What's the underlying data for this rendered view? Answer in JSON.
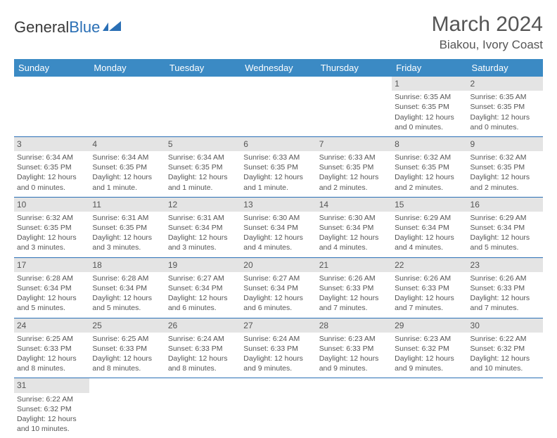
{
  "logo": {
    "text1": "General",
    "text2": "Blue"
  },
  "title": "March 2024",
  "location": "Biakou, Ivory Coast",
  "colors": {
    "header_bg": "#3b8ac4",
    "header_text": "#ffffff",
    "daynum_bg": "#e4e4e4",
    "row_border": "#2a6fb5",
    "body_text": "#555555",
    "logo_blue": "#2a6fb5"
  },
  "day_headers": [
    "Sunday",
    "Monday",
    "Tuesday",
    "Wednesday",
    "Thursday",
    "Friday",
    "Saturday"
  ],
  "weeks": [
    [
      null,
      null,
      null,
      null,
      null,
      {
        "n": "1",
        "sr": "6:35 AM",
        "ss": "6:35 PM",
        "dl": "12 hours and 0 minutes."
      },
      {
        "n": "2",
        "sr": "6:35 AM",
        "ss": "6:35 PM",
        "dl": "12 hours and 0 minutes."
      }
    ],
    [
      {
        "n": "3",
        "sr": "6:34 AM",
        "ss": "6:35 PM",
        "dl": "12 hours and 0 minutes."
      },
      {
        "n": "4",
        "sr": "6:34 AM",
        "ss": "6:35 PM",
        "dl": "12 hours and 1 minute."
      },
      {
        "n": "5",
        "sr": "6:34 AM",
        "ss": "6:35 PM",
        "dl": "12 hours and 1 minute."
      },
      {
        "n": "6",
        "sr": "6:33 AM",
        "ss": "6:35 PM",
        "dl": "12 hours and 1 minute."
      },
      {
        "n": "7",
        "sr": "6:33 AM",
        "ss": "6:35 PM",
        "dl": "12 hours and 2 minutes."
      },
      {
        "n": "8",
        "sr": "6:32 AM",
        "ss": "6:35 PM",
        "dl": "12 hours and 2 minutes."
      },
      {
        "n": "9",
        "sr": "6:32 AM",
        "ss": "6:35 PM",
        "dl": "12 hours and 2 minutes."
      }
    ],
    [
      {
        "n": "10",
        "sr": "6:32 AM",
        "ss": "6:35 PM",
        "dl": "12 hours and 3 minutes."
      },
      {
        "n": "11",
        "sr": "6:31 AM",
        "ss": "6:35 PM",
        "dl": "12 hours and 3 minutes."
      },
      {
        "n": "12",
        "sr": "6:31 AM",
        "ss": "6:34 PM",
        "dl": "12 hours and 3 minutes."
      },
      {
        "n": "13",
        "sr": "6:30 AM",
        "ss": "6:34 PM",
        "dl": "12 hours and 4 minutes."
      },
      {
        "n": "14",
        "sr": "6:30 AM",
        "ss": "6:34 PM",
        "dl": "12 hours and 4 minutes."
      },
      {
        "n": "15",
        "sr": "6:29 AM",
        "ss": "6:34 PM",
        "dl": "12 hours and 4 minutes."
      },
      {
        "n": "16",
        "sr": "6:29 AM",
        "ss": "6:34 PM",
        "dl": "12 hours and 5 minutes."
      }
    ],
    [
      {
        "n": "17",
        "sr": "6:28 AM",
        "ss": "6:34 PM",
        "dl": "12 hours and 5 minutes."
      },
      {
        "n": "18",
        "sr": "6:28 AM",
        "ss": "6:34 PM",
        "dl": "12 hours and 5 minutes."
      },
      {
        "n": "19",
        "sr": "6:27 AM",
        "ss": "6:34 PM",
        "dl": "12 hours and 6 minutes."
      },
      {
        "n": "20",
        "sr": "6:27 AM",
        "ss": "6:34 PM",
        "dl": "12 hours and 6 minutes."
      },
      {
        "n": "21",
        "sr": "6:26 AM",
        "ss": "6:33 PM",
        "dl": "12 hours and 7 minutes."
      },
      {
        "n": "22",
        "sr": "6:26 AM",
        "ss": "6:33 PM",
        "dl": "12 hours and 7 minutes."
      },
      {
        "n": "23",
        "sr": "6:26 AM",
        "ss": "6:33 PM",
        "dl": "12 hours and 7 minutes."
      }
    ],
    [
      {
        "n": "24",
        "sr": "6:25 AM",
        "ss": "6:33 PM",
        "dl": "12 hours and 8 minutes."
      },
      {
        "n": "25",
        "sr": "6:25 AM",
        "ss": "6:33 PM",
        "dl": "12 hours and 8 minutes."
      },
      {
        "n": "26",
        "sr": "6:24 AM",
        "ss": "6:33 PM",
        "dl": "12 hours and 8 minutes."
      },
      {
        "n": "27",
        "sr": "6:24 AM",
        "ss": "6:33 PM",
        "dl": "12 hours and 9 minutes."
      },
      {
        "n": "28",
        "sr": "6:23 AM",
        "ss": "6:33 PM",
        "dl": "12 hours and 9 minutes."
      },
      {
        "n": "29",
        "sr": "6:23 AM",
        "ss": "6:32 PM",
        "dl": "12 hours and 9 minutes."
      },
      {
        "n": "30",
        "sr": "6:22 AM",
        "ss": "6:32 PM",
        "dl": "12 hours and 10 minutes."
      }
    ],
    [
      {
        "n": "31",
        "sr": "6:22 AM",
        "ss": "6:32 PM",
        "dl": "12 hours and 10 minutes."
      },
      null,
      null,
      null,
      null,
      null,
      null
    ]
  ],
  "labels": {
    "sunrise": "Sunrise: ",
    "sunset": "Sunset: ",
    "daylight": "Daylight: "
  }
}
